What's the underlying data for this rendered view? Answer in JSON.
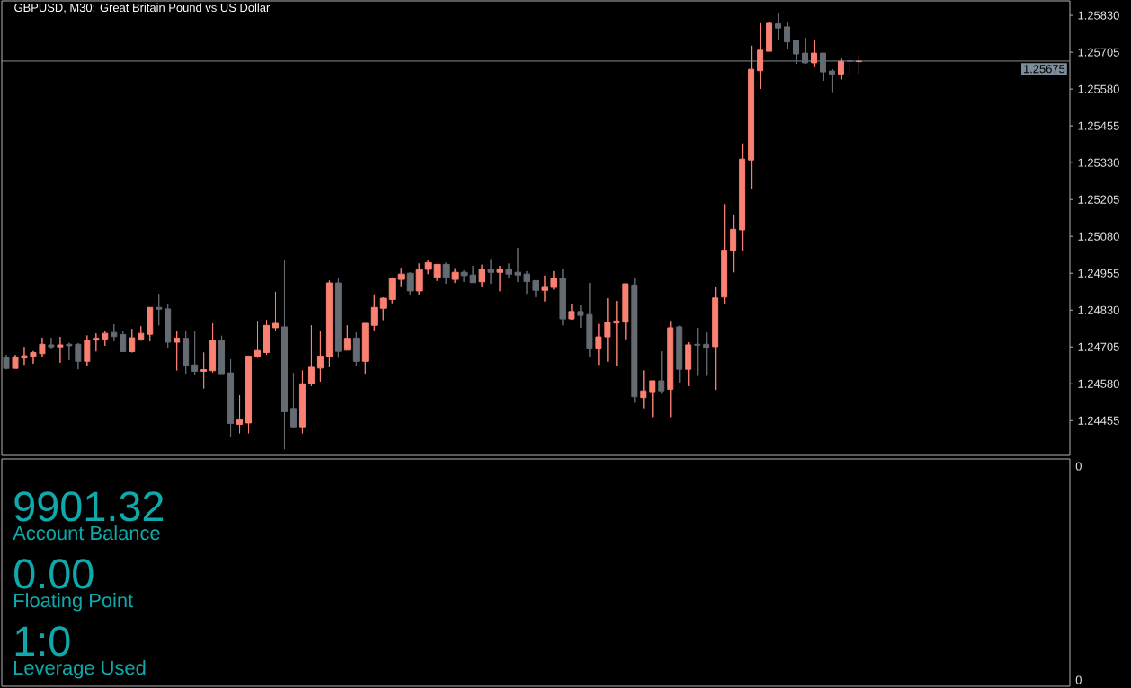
{
  "chart_data": [
    {
      "type": "candlestick",
      "title": "GBPUSD, M30: Great Britain Pound vs US Dollar",
      "categories": [
        null,
        null,
        null,
        null,
        null,
        null,
        null,
        null,
        null,
        null,
        null,
        null,
        null,
        null,
        null,
        null,
        null,
        null,
        null,
        null,
        null,
        null,
        null,
        null,
        null,
        null,
        null,
        null,
        null,
        null,
        null,
        null,
        null,
        null,
        null,
        null,
        null,
        null,
        null,
        null,
        null,
        null,
        null,
        null,
        null,
        null,
        null,
        null,
        null,
        null,
        null,
        null,
        null,
        null,
        null,
        null,
        null,
        null,
        null,
        null,
        null,
        null,
        null,
        null,
        null,
        null,
        null,
        null,
        null,
        null,
        null,
        null,
        null,
        null,
        null,
        null,
        null,
        null,
        null,
        null,
        null,
        null,
        null,
        null,
        null,
        null,
        null,
        null,
        null,
        null,
        null,
        null,
        null,
        null,
        null,
        null,
        null,
        null,
        null,
        null,
        null,
        null,
        null,
        null,
        null,
        null,
        null,
        null,
        null,
        null,
        null,
        null,
        null,
        null,
        null,
        null,
        null,
        null,
        null
      ],
      "ohlc": [
        [
          1.24669,
          1.24678,
          1.24629,
          1.24632
        ],
        [
          1.24632,
          1.24678,
          1.24632,
          1.24671
        ],
        [
          1.24667,
          1.24705,
          1.24644,
          1.24675
        ],
        [
          1.24671,
          1.24691,
          1.24648,
          1.24686
        ],
        [
          1.24682,
          1.24736,
          1.24671,
          1.24714
        ],
        [
          1.24712,
          1.24736,
          1.24697,
          1.24705
        ],
        [
          1.24705,
          1.24739,
          1.24651,
          1.24712
        ],
        [
          1.24714,
          1.24719,
          1.2466,
          1.24709
        ],
        [
          1.24714,
          1.24718,
          1.24629,
          1.24656
        ],
        [
          1.24656,
          1.24744,
          1.24639,
          1.24728
        ],
        [
          1.24728,
          1.24751,
          1.2469,
          1.24735
        ],
        [
          1.24732,
          1.24758,
          1.24709,
          1.24751
        ],
        [
          1.24754,
          1.24782,
          1.24724,
          1.2474
        ],
        [
          1.24747,
          1.24757,
          1.24689,
          1.24689
        ],
        [
          1.24689,
          1.24766,
          1.24686,
          1.24736
        ],
        [
          1.24731,
          1.24775,
          1.24726,
          1.24751
        ],
        [
          1.24748,
          1.24839,
          1.24724,
          1.24839
        ],
        [
          1.24839,
          1.24885,
          1.24778,
          1.24833
        ],
        [
          1.24834,
          1.2485,
          1.24702,
          1.24721
        ],
        [
          1.24721,
          1.24758,
          1.24625,
          1.24735
        ],
        [
          1.24734,
          1.24758,
          1.24614,
          1.24641
        ],
        [
          1.24644,
          1.24758,
          1.2461,
          1.24622
        ],
        [
          1.24622,
          1.24686,
          1.24564,
          1.24628
        ],
        [
          1.24624,
          1.24785,
          1.24618,
          1.24728
        ],
        [
          1.24728,
          1.24743,
          1.24614,
          1.24614
        ],
        [
          1.24617,
          1.24663,
          1.24401,
          1.24445
        ],
        [
          1.24442,
          1.24541,
          1.24412,
          1.24458
        ],
        [
          1.24447,
          1.24674,
          1.24412,
          1.24674
        ],
        [
          1.24671,
          1.24793,
          1.24668,
          1.24693
        ],
        [
          1.24686,
          1.24796,
          1.24678,
          1.24778
        ],
        [
          1.2477,
          1.24892,
          1.24759,
          1.24785
        ],
        [
          1.24773,
          1.24998,
          1.24358,
          1.24485
        ],
        [
          1.24496,
          1.24617,
          1.24429,
          1.24434
        ],
        [
          1.24434,
          1.24625,
          1.24412,
          1.2458
        ],
        [
          1.2458,
          1.24778,
          1.24572,
          1.24636
        ],
        [
          1.24633,
          1.24759,
          1.24587,
          1.24674
        ],
        [
          1.24671,
          1.2493,
          1.24636,
          1.24922
        ],
        [
          1.24922,
          1.24937,
          1.24668,
          1.2469
        ],
        [
          1.24694,
          1.24778,
          1.24694,
          1.24734
        ],
        [
          1.24735,
          1.24754,
          1.24641,
          1.24656
        ],
        [
          1.24656,
          1.24785,
          1.24614,
          1.24785
        ],
        [
          1.24778,
          1.24883,
          1.24758,
          1.24839
        ],
        [
          1.24836,
          1.24873,
          1.24796,
          1.2487
        ],
        [
          1.24866,
          1.24941,
          1.24853,
          1.24937
        ],
        [
          1.24934,
          1.24973,
          1.24911,
          1.24952
        ],
        [
          1.24955,
          1.24958,
          1.2488,
          1.24895
        ],
        [
          1.24895,
          1.24988,
          1.24883,
          1.24967
        ],
        [
          1.24968,
          1.24998,
          1.24952,
          1.24991
        ],
        [
          1.24941,
          1.24985,
          1.24929,
          1.24985
        ],
        [
          1.24985,
          1.24991,
          1.24919,
          1.24941
        ],
        [
          1.24934,
          1.24972,
          1.24922,
          1.24958
        ],
        [
          1.24958,
          1.24965,
          1.24925,
          1.24947
        ],
        [
          1.24949,
          1.2498,
          1.24922,
          1.24923
        ],
        [
          1.24926,
          1.24984,
          1.2491,
          1.24968
        ],
        [
          1.24968,
          1.25003,
          1.24919,
          1.24958
        ],
        [
          1.24958,
          1.2498,
          1.24894,
          1.24968
        ],
        [
          1.24968,
          1.24988,
          1.24937,
          1.24952
        ],
        [
          1.24958,
          1.25041,
          1.24925,
          1.24949
        ],
        [
          1.24952,
          1.24962,
          1.24885,
          1.24927
        ],
        [
          1.2493,
          1.2493,
          1.24874,
          1.24897
        ],
        [
          1.24897,
          1.24947,
          1.24859,
          1.2491
        ],
        [
          1.24907,
          1.24962,
          1.249,
          1.24937
        ],
        [
          1.24937,
          1.24968,
          1.24778,
          1.248
        ],
        [
          1.248,
          1.2485,
          1.24797,
          1.24825
        ],
        [
          1.24825,
          1.24846,
          1.2477,
          1.24812
        ],
        [
          1.24815,
          1.24922,
          1.24671,
          1.24698
        ],
        [
          1.24698,
          1.24783,
          1.24644,
          1.24739
        ],
        [
          1.24739,
          1.2487,
          1.24655,
          1.24789
        ],
        [
          1.24786,
          1.24861,
          1.24641,
          1.24793
        ],
        [
          1.24789,
          1.24919,
          1.24731,
          1.24919
        ],
        [
          1.24915,
          1.24937,
          1.24516,
          1.24536
        ],
        [
          1.24533,
          1.24625,
          1.24497,
          1.24556
        ],
        [
          1.24553,
          1.2459,
          1.24467,
          1.2459
        ],
        [
          1.2459,
          1.2469,
          1.24546,
          1.24556
        ],
        [
          1.24561,
          1.24793,
          1.24467,
          1.2477
        ],
        [
          1.24773,
          1.24777,
          1.24584,
          1.24629
        ],
        [
          1.24629,
          1.24721,
          1.24572,
          1.24712
        ],
        [
          1.24714,
          1.2477,
          1.24607,
          1.24711
        ],
        [
          1.24714,
          1.24754,
          1.24607,
          1.24703
        ],
        [
          1.24706,
          1.2491,
          1.24559,
          1.24871
        ],
        [
          1.24874,
          1.25189,
          1.24851,
          1.25033
        ],
        [
          1.25031,
          1.25154,
          1.24958,
          1.25104
        ],
        [
          1.25102,
          1.25395,
          1.25031,
          1.25342
        ],
        [
          1.25339,
          1.25727,
          1.25242,
          1.25647
        ],
        [
          1.25642,
          1.25803,
          1.25581,
          1.25712
        ],
        [
          1.25708,
          1.25806,
          1.25708,
          1.25803
        ],
        [
          1.25801,
          1.25837,
          1.25745,
          1.25787
        ],
        [
          1.25791,
          1.25809,
          1.25715,
          1.2574
        ],
        [
          1.25745,
          1.25745,
          1.25666,
          1.25699
        ],
        [
          1.25702,
          1.25753,
          1.25666,
          1.25669
        ],
        [
          1.25669,
          1.25745,
          1.25654,
          1.25702
        ],
        [
          1.25702,
          1.25702,
          1.25608,
          1.25638
        ],
        [
          1.25641,
          1.25647,
          1.2557,
          1.25631
        ],
        [
          1.25631,
          1.25682,
          1.25613,
          1.25674
        ],
        [
          1.25676,
          1.25689,
          1.25623,
          1.25674
        ],
        [
          1.25673,
          1.25696,
          1.25631,
          1.25675
        ],
        null,
        null,
        null,
        null,
        null,
        null,
        null,
        null,
        null,
        null,
        null,
        null,
        null,
        null,
        null,
        null,
        null,
        null,
        null,
        null,
        null,
        null,
        null
      ],
      "colors": [
        "#646b72",
        "#fa8072",
        "#fa8072",
        "#fa8072",
        "#fa8072",
        "#646b72",
        "#fa8072",
        "#646b72",
        "#646b72",
        "#fa8072",
        "#fa8072",
        "#fa8072",
        "#646b72",
        "#646b72",
        "#fa8072",
        "#fa8072",
        "#fa8072",
        "#646b72",
        "#646b72",
        "#fa8072",
        "#646b72",
        "#646b72",
        "#fa8072",
        "#fa8072",
        "#646b72",
        "#646b72",
        "#fa8072",
        "#fa8072",
        "#fa8072",
        "#fa8072",
        "#fa8072",
        "#646b72",
        "#646b72",
        "#fa8072",
        "#fa8072",
        "#fa8072",
        "#fa8072",
        "#646b72",
        "#fa8072",
        "#646b72",
        "#fa8072",
        "#fa8072",
        "#fa8072",
        "#fa8072",
        "#fa8072",
        "#646b72",
        "#fa8072",
        "#fa8072",
        "#fa8072",
        "#646b72",
        "#fa8072",
        "#646b72",
        "#646b72",
        "#fa8072",
        "#646b72",
        "#fa8072",
        "#646b72",
        "#646b72",
        "#646b72",
        "#646b72",
        "#fa8072",
        "#fa8072",
        "#646b72",
        "#fa8072",
        "#646b72",
        "#646b72",
        "#fa8072",
        "#fa8072",
        "#fa8072",
        "#fa8072",
        "#646b72",
        "#fa8072",
        "#fa8072",
        "#646b72",
        "#fa8072",
        "#646b72",
        "#fa8072",
        "#646b72",
        "#646b72",
        "#fa8072",
        "#fa8072",
        "#fa8072",
        "#fa8072",
        "#fa8072",
        "#fa8072",
        "#fa8072",
        "#646b72",
        "#646b72",
        "#646b72",
        "#646b72",
        "#fa8072",
        "#646b72",
        "#646b72",
        "#fa8072",
        "#646b72",
        "#fa8072",
        null,
        null,
        null,
        null,
        null,
        null,
        null,
        null,
        null,
        null,
        null,
        null,
        null,
        null,
        null,
        null,
        null,
        null,
        null,
        null,
        null,
        null,
        null
      ],
      "ylim": [
        1.24337,
        1.25879
      ],
      "yticks": [
        1.24455,
        {
          "value": 1.2458,
          "label": "1.24580"
        },
        1.24705,
        {
          "value": 1.2483,
          "label": "1.24830"
        },
        1.24955,
        {
          "value": 1.2508,
          "label": "1.25080"
        },
        1.25205,
        {
          "value": 1.2533,
          "label": "1.25330"
        },
        1.25455,
        {
          "value": 1.2558,
          "label": "1.25580"
        },
        1.25705,
        {
          "value": 1.2583,
          "label": "1.25830"
        }
      ],
      "ref_lines": [
        {
          "axis": "y",
          "value": 1.25675,
          "label": "1.25675",
          "color": "#7d8c99"
        }
      ]
    },
    {
      "type": "other",
      "color": "#10a9ab",
      "annotations": [
        "9901.32",
        "Account Balance",
        "0.00",
        "Floating Point",
        "1:0",
        "Leverage Used",
        "0",
        "0"
      ]
    }
  ]
}
